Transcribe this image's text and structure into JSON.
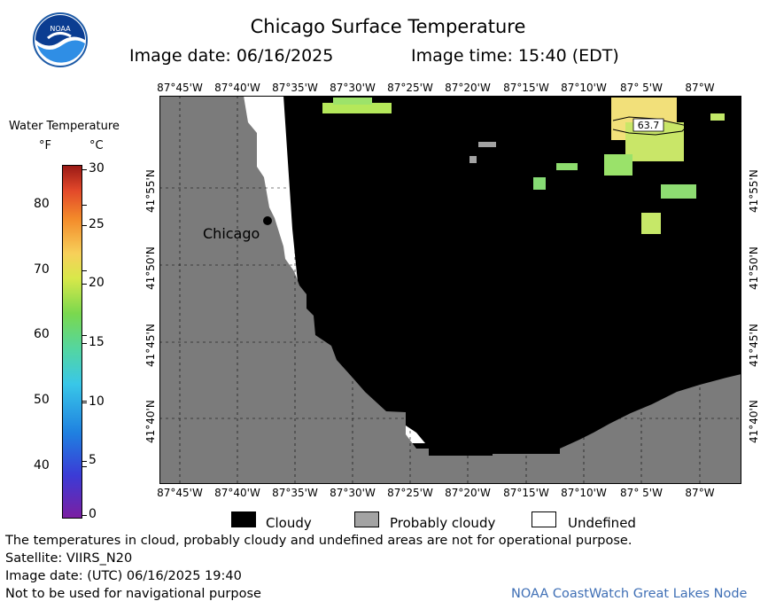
{
  "header": {
    "title": "Chicago Surface Temperature",
    "image_date": "Image date: 06/16/2025",
    "image_time": "Image time: 15:40 (EDT)"
  },
  "logo": {
    "text": "NOAA"
  },
  "map": {
    "top_lon_labels": [
      "87°45'W",
      "87°40'W",
      "87°35'W",
      "87°30'W",
      "87°25'W",
      "87°20'W",
      "87°15'W",
      "87°10'W",
      "87° 5'W",
      "87°W"
    ],
    "bottom_lon_labels": [
      "87°45'W",
      "87°40'W",
      "87°35'W",
      "87°30'W",
      "87°25'W",
      "87°20'W",
      "87°15'W",
      "87°10'W",
      "87° 5'W",
      "87°W"
    ],
    "lat_labels": [
      "41°55'N",
      "41°50'N",
      "41°45'N",
      "41°40'N"
    ],
    "city_label": "Chicago",
    "temp_label": "63.7",
    "colors": {
      "land": "#7b7b7b",
      "cloudy": "#000000",
      "undefined": "#ffffff"
    }
  },
  "colorbar": {
    "title": "Water Temperature",
    "unit_f": "°F",
    "unit_c": "°C",
    "f_ticks": [
      "80",
      "70",
      "60",
      "50",
      "40"
    ],
    "c_ticks": [
      "30",
      "25",
      "20",
      "15",
      "10",
      "5",
      "0"
    ]
  },
  "legend": {
    "cloudy": "Cloudy",
    "probably_cloudy": "Probably cloudy",
    "undefined": "Undefined"
  },
  "footer": {
    "note": "The temperatures in cloud, probably cloudy and undefined areas are not for operational purpose.",
    "satellite": "Satellite: VIIRS_N20",
    "utc_date": "Image date: (UTC) 06/16/2025  19:40",
    "nav_warning": "Not to be used for navigational purpose",
    "credit": "NOAA CoastWatch Great Lakes Node",
    "credit_color": "#3f6fb5"
  }
}
